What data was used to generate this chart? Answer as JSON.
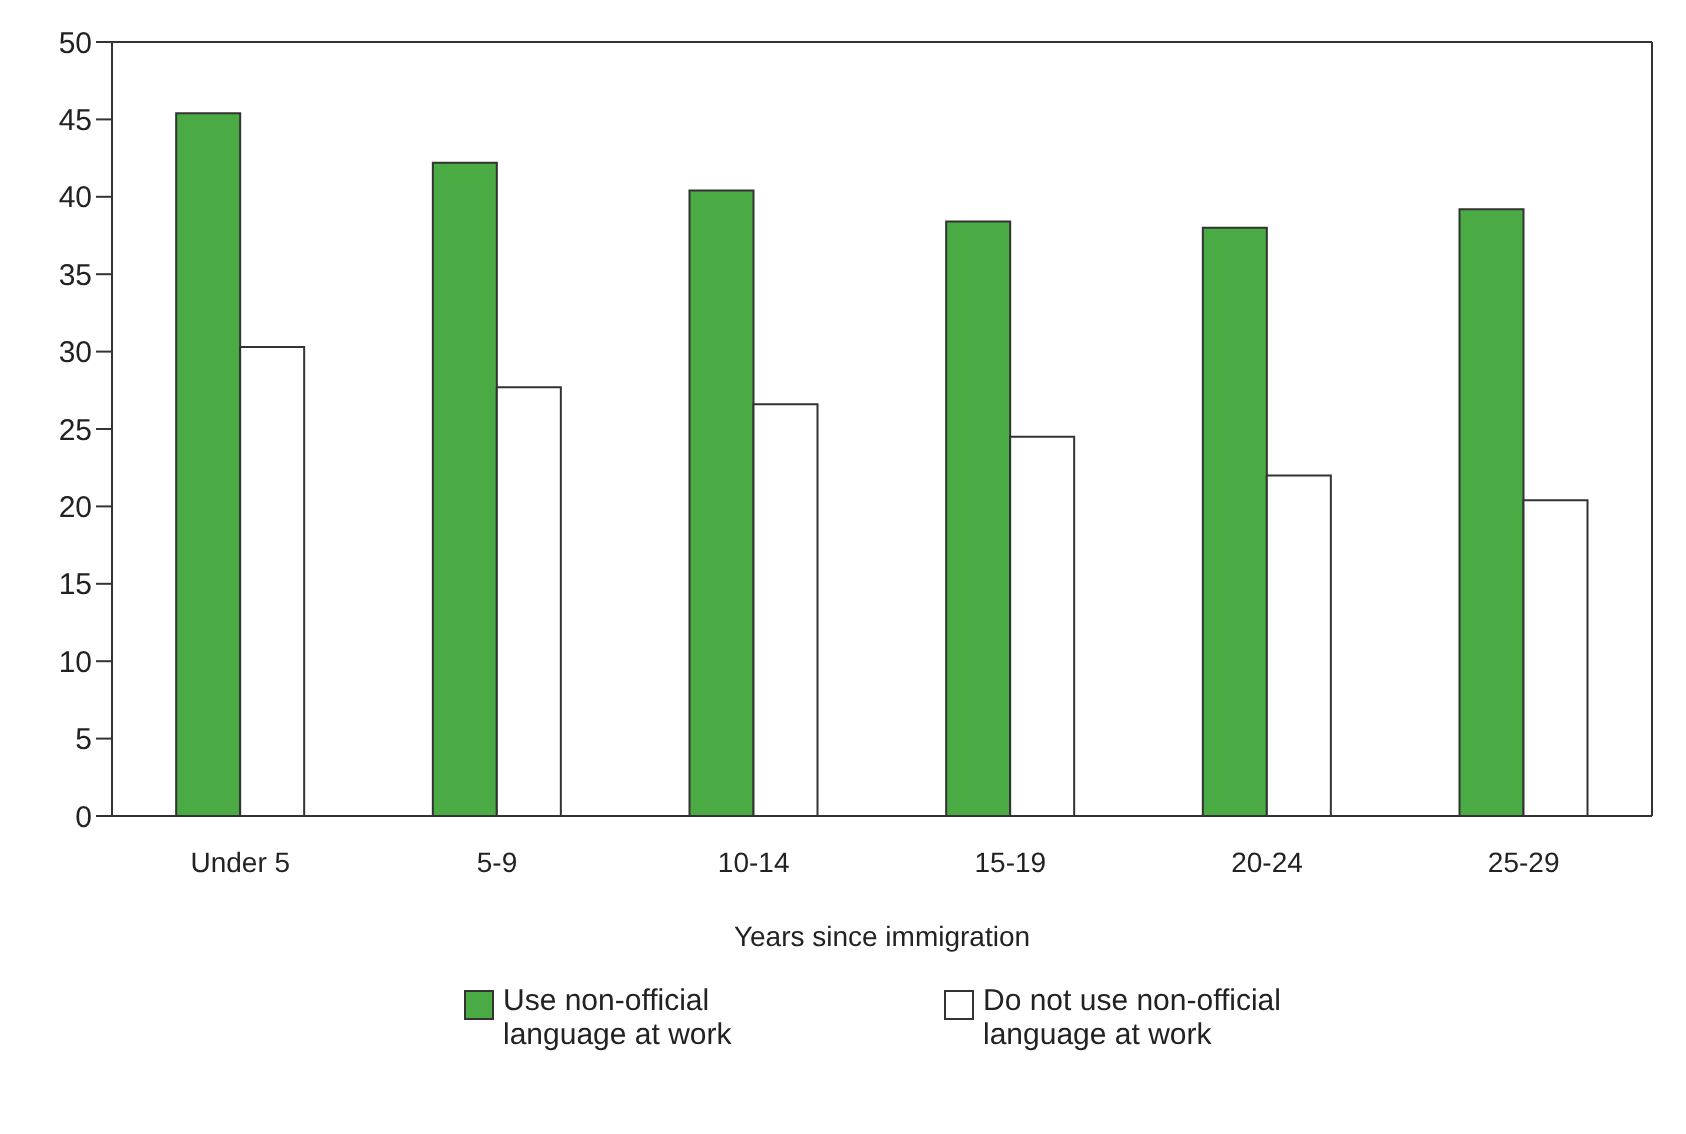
{
  "chart_data": {
    "type": "bar",
    "xlabel": "Years since immigration",
    "categories": [
      "Under 5",
      "5-9",
      "10-14",
      "15-19",
      "20-24",
      "25-29"
    ],
    "series": [
      {
        "name": "Use non-official language at work",
        "color": "#4aaa43",
        "values": [
          45.4,
          42.2,
          40.4,
          38.4,
          38.0,
          39.2
        ]
      },
      {
        "name": "Do not use non-official language at work",
        "color": "#ffffff",
        "values": [
          30.3,
          27.7,
          26.6,
          24.5,
          22.0,
          20.4
        ]
      }
    ],
    "ylim": [
      0,
      50
    ],
    "yticks": [
      0,
      5,
      10,
      15,
      20,
      25,
      30,
      35,
      40,
      45,
      50
    ],
    "legend": "bottom"
  }
}
